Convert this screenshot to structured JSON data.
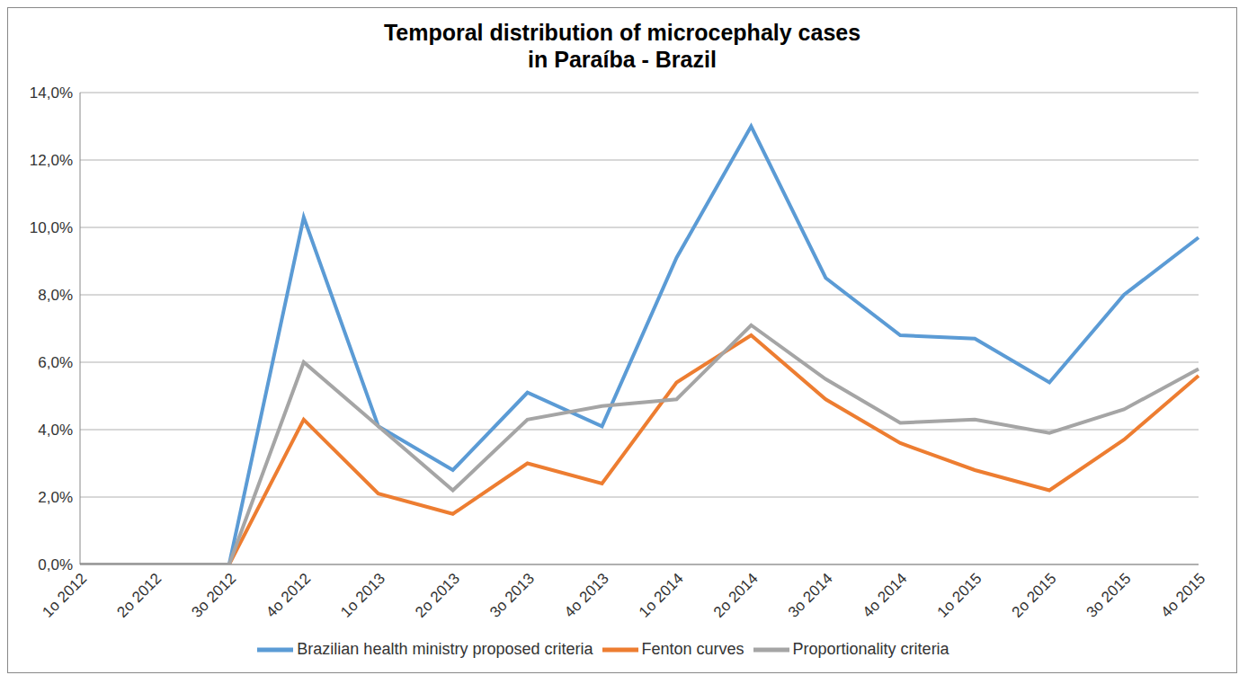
{
  "chart_data": {
    "type": "line",
    "title": "Temporal distribution of microcephaly cases\nin Paraíba - Brazil",
    "categories": [
      "1o 2012",
      "2o 2012",
      "3o 2012",
      "4o 2012",
      "1o 2013",
      "2o 2013",
      "3o 2013",
      "4o 2013",
      "1o 2014",
      "2o 2014",
      "3o 2014",
      "4o 2014",
      "1o 2015",
      "2o 2015",
      "3o 2015",
      "4o 2015"
    ],
    "series": [
      {
        "name": "Brazilian health ministry proposed criteria",
        "color": "#5b9bd5",
        "values": [
          0,
          0,
          0,
          10.3,
          4.1,
          2.8,
          5.1,
          4.1,
          9.1,
          13.0,
          8.5,
          6.8,
          6.7,
          5.4,
          8.0,
          9.7
        ]
      },
      {
        "name": "Fenton curves",
        "color": "#ed7d31",
        "values": [
          0,
          0,
          0,
          4.3,
          2.1,
          1.5,
          3.0,
          2.4,
          5.4,
          6.8,
          4.9,
          3.6,
          2.8,
          2.2,
          3.7,
          5.6
        ]
      },
      {
        "name": "Proportionality criteria",
        "color": "#a5a5a5",
        "values": [
          0,
          0,
          0,
          6.0,
          4.1,
          2.2,
          4.3,
          4.7,
          4.9,
          7.1,
          5.5,
          4.2,
          4.3,
          3.9,
          4.6,
          5.8
        ]
      }
    ],
    "ylim": [
      0,
      14
    ],
    "yticks": [
      {
        "value": 0,
        "label": "0,0%"
      },
      {
        "value": 2,
        "label": "2,0%"
      },
      {
        "value": 4,
        "label": "4,0%"
      },
      {
        "value": 6,
        "label": "6,0%"
      },
      {
        "value": 8,
        "label": "8,0%"
      },
      {
        "value": 10,
        "label": "10,0%"
      },
      {
        "value": 12,
        "label": "12,0%"
      },
      {
        "value": 14,
        "label": "14,0%"
      }
    ],
    "grid": true,
    "legend": "bottom",
    "marker": "none",
    "line_style": "solid"
  }
}
